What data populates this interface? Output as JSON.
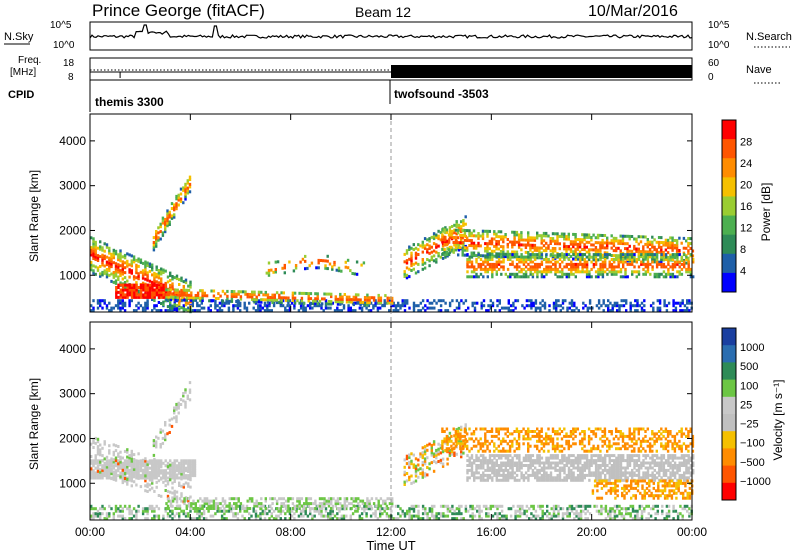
{
  "header": {
    "site": "Prince George (fitACF)",
    "beam": "Beam 12",
    "date": "10/Mar/2016"
  },
  "nsky": {
    "label": "N.Sky",
    "ticks_left": [
      "10^5",
      "10^0"
    ],
    "ticks_right": [
      "10^5",
      "10^0"
    ],
    "right_label": "N.Search"
  },
  "freq": {
    "label_line1": "Freq.",
    "label_line2": "[MHz]",
    "ticks_left": [
      "18",
      "8"
    ],
    "ticks_right": [
      "60",
      "0"
    ],
    "right_label": "Nave"
  },
  "cpid": {
    "label": "CPID",
    "modes": [
      {
        "name": "themis 3300",
        "start_hour": 0
      },
      {
        "name": "twofsound -3503",
        "start_hour": 12
      }
    ]
  },
  "chart_data": [
    {
      "type": "heatmap",
      "name": "power",
      "ylabel": "Slant Range [km]",
      "ylim": [
        180,
        4600
      ],
      "yticks": [
        1000,
        2000,
        3000,
        4000
      ],
      "xlim": [
        0,
        24
      ],
      "colorbar": {
        "label": "Power [dB]",
        "ticks": [
          "28",
          "24",
          "20",
          "16",
          "12",
          "8",
          "4"
        ],
        "colors": [
          "#ff0000",
          "#ff5500",
          "#ff8c00",
          "#f5c000",
          "#9acd32",
          "#4caf50",
          "#2e8b57",
          "#1e5fa8",
          "#0000ff"
        ]
      }
    },
    {
      "type": "heatmap",
      "name": "velocity",
      "ylabel": "Slant Range [km]",
      "ylim": [
        180,
        4600
      ],
      "yticks": [
        1000,
        2000,
        3000,
        4000
      ],
      "xlim": [
        0,
        24
      ],
      "xticks": [
        "00:00",
        "04:00",
        "08:00",
        "12:00",
        "16:00",
        "20:00",
        "00:00"
      ],
      "xlabel": "Time UT",
      "colorbar": {
        "label": "Velocity [m s⁻¹]",
        "ticks": [
          "1000",
          "500",
          "100",
          "25",
          "−25",
          "−100",
          "−500",
          "−1000"
        ],
        "colors": [
          "#1a3fa0",
          "#2a6db0",
          "#2e8b57",
          "#6cc644",
          "#c8c8c8",
          "#c0c0c0",
          "#f5c000",
          "#ff8c00",
          "#ff5500",
          "#ff0000"
        ]
      }
    }
  ]
}
